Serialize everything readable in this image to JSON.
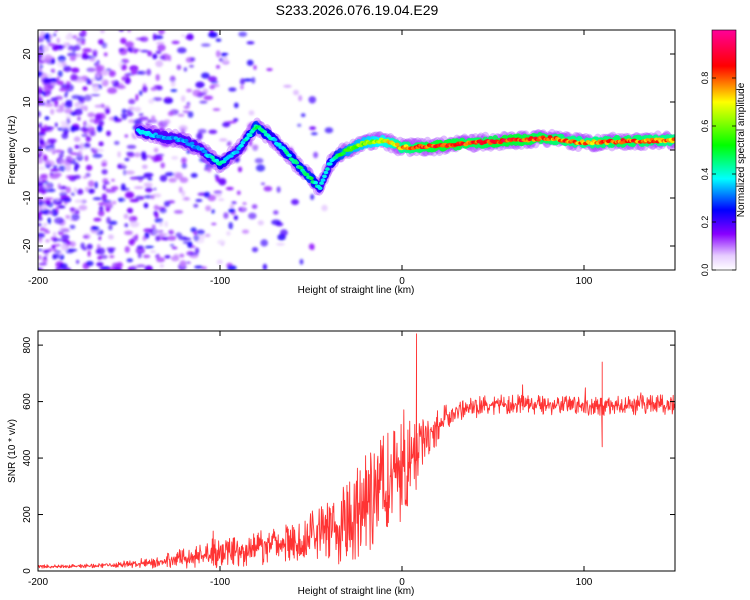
{
  "figure_title": "S233.2026.076.19.04.E29",
  "chart_data": [
    {
      "type": "heatmap",
      "title": "S233.2026.076.19.04.E29",
      "xlabel": "Height of straight line (km)",
      "ylabel": "Frequency (Hz)",
      "xlim": [
        -200,
        150
      ],
      "ylim": [
        -25,
        25
      ],
      "xticks": [
        -200,
        -100,
        0,
        100
      ],
      "yticks": [
        -20,
        -10,
        0,
        10,
        20
      ],
      "colorbar": {
        "label": "Normalized spectral amplitude",
        "range": [
          0.0,
          1.0
        ],
        "ticks": [
          0.0,
          0.2,
          0.4,
          0.6,
          0.8
        ],
        "tick_labels": [
          "0.0",
          "0.2",
          "0.4",
          "0.6",
          "0.8"
        ],
        "colors": [
          "#ffffff",
          "#6600ff",
          "#0000ff",
          "#00ffff",
          "#00ff00",
          "#ffff00",
          "#ff0000",
          "#ff0099"
        ]
      },
      "ridge": {
        "x": [
          -145,
          -135,
          -120,
          -110,
          -100,
          -90,
          -80,
          -70,
          -60,
          -50,
          -45,
          -40,
          -35,
          -30,
          -20,
          -10,
          0,
          20,
          40,
          60,
          80,
          100,
          120,
          150
        ],
        "y": [
          4,
          3,
          2,
          0,
          -3,
          0,
          5,
          2,
          -2,
          -6,
          -8,
          -3,
          -1,
          0,
          1.5,
          2,
          0.5,
          0.8,
          1.5,
          2,
          2.5,
          1.5,
          1.8,
          2
        ],
        "amplitude": [
          0.4,
          0.35,
          0.35,
          0.35,
          0.45,
          0.35,
          0.5,
          0.4,
          0.45,
          0.5,
          0.4,
          0.4,
          0.5,
          0.6,
          0.65,
          0.7,
          0.8,
          0.9,
          0.85,
          0.9,
          0.85,
          0.8,
          0.85,
          0.8
        ]
      },
      "noise_region_x": [
        -200,
        -150
      ],
      "noise_decay_to_x": -40
    },
    {
      "type": "line",
      "xlabel": "Height of straight line (km)",
      "ylabel": "SNR (10 * v/v)",
      "xlim": [
        -200,
        150
      ],
      "ylim": [
        0,
        850
      ],
      "xticks": [
        -200,
        -100,
        0,
        100
      ],
      "yticks": [
        0,
        200,
        400,
        600,
        800
      ],
      "color": "#ff3333",
      "series": [
        {
          "name": "SNR",
          "trend_x": [
            -200,
            -160,
            -140,
            -120,
            -100,
            -80,
            -60,
            -40,
            -30,
            -20,
            -15,
            -10,
            -5,
            0,
            5,
            10,
            20,
            30,
            40,
            60,
            100,
            150
          ],
          "trend_y": [
            15,
            20,
            30,
            45,
            60,
            80,
            100,
            140,
            170,
            230,
            260,
            290,
            320,
            340,
            380,
            420,
            520,
            565,
            585,
            590,
            585,
            590
          ],
          "noise_amplitude": [
            5,
            8,
            20,
            35,
            50,
            60,
            70,
            110,
            150,
            180,
            190,
            200,
            200,
            180,
            160,
            120,
            60,
            40,
            35,
            35,
            35,
            35
          ],
          "spikes": [
            {
              "x": 8,
              "y": 840
            },
            {
              "x": 110,
              "y": 740
            },
            {
              "x": 110,
              "y": 440
            }
          ]
        }
      ]
    }
  ]
}
